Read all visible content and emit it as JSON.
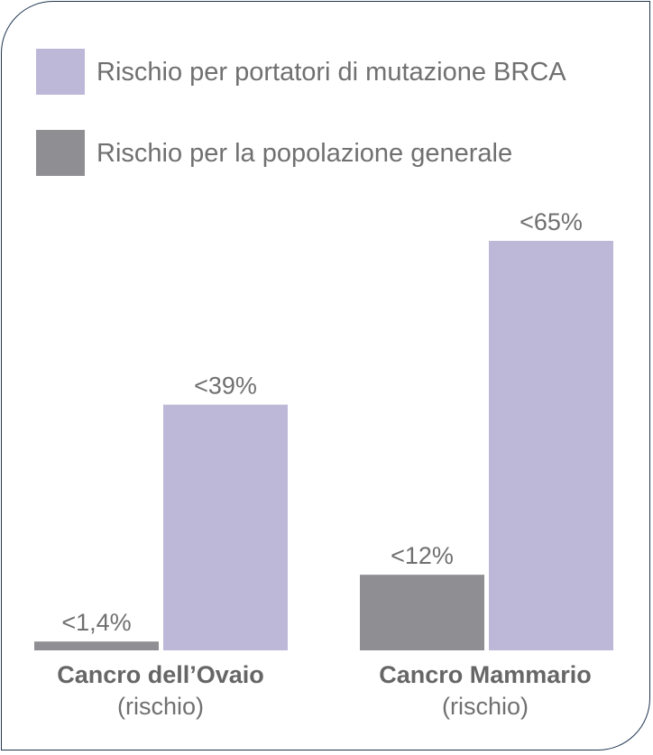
{
  "chart_data": {
    "type": "bar",
    "categories": [
      "Cancro dell’Ovaio",
      "Cancro Mammario"
    ],
    "category_sublabel": "(rischio)",
    "series": [
      {
        "name": "Rischio per la popolazione generale",
        "values": [
          1.4,
          12
        ],
        "labels": [
          "<1,4%",
          "<12%"
        ],
        "color": "#8e8e93"
      },
      {
        "name": "Rischio per portatori di mutazione BRCA",
        "values": [
          39,
          65
        ],
        "labels": [
          "<39%",
          "<65%"
        ],
        "color": "#bdb8d7"
      }
    ],
    "legend_order": [
      1,
      0
    ],
    "legend_position": "top-left",
    "ylim": [
      0,
      65
    ],
    "grid": false,
    "title": "",
    "xlabel": "",
    "ylabel": ""
  }
}
